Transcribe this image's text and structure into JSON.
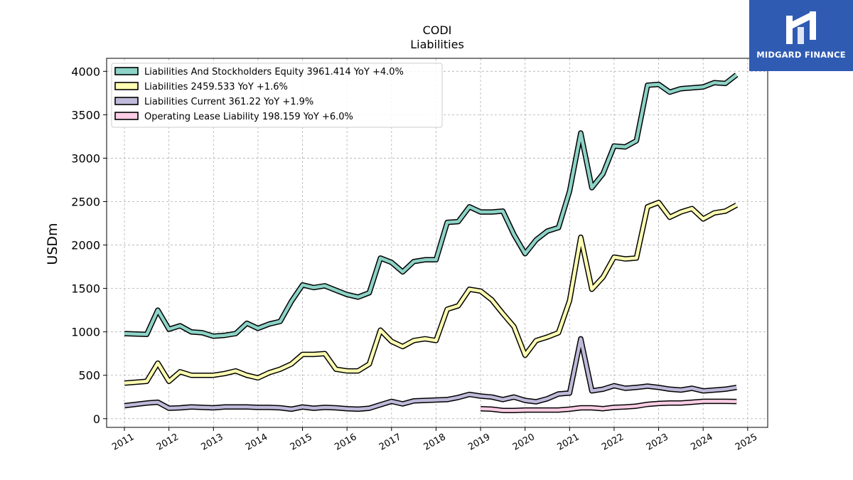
{
  "brand": {
    "name": "MIDGARD FINANCE",
    "bg_color": "#2f5bb3"
  },
  "chart_data": {
    "type": "line",
    "title": "CODI",
    "subtitle": "Liabilities",
    "xlabel": "",
    "ylabel": "USDm",
    "xlim": [
      2010.6,
      2025.45
    ],
    "ylim": [
      -100,
      4150
    ],
    "x_ticks": [
      "2011",
      "2012",
      "2013",
      "2014",
      "2015",
      "2016",
      "2017",
      "2018",
      "2019",
      "2020",
      "2021",
      "2022",
      "2023",
      "2024",
      "2025"
    ],
    "y_ticks": [
      0,
      500,
      1000,
      1500,
      2000,
      2500,
      3000,
      3500,
      4000
    ],
    "grid": true,
    "legend_position": "top-left",
    "series": [
      {
        "name": "Liabilities And Stockholders Equity",
        "legend": "Liabilities And Stockholders Equity  3961.414 YoY +4.0%",
        "color": "#8dd3c7",
        "x": [
          2011.0,
          2011.5,
          2011.75,
          2012.0,
          2012.25,
          2012.5,
          2012.75,
          2013.0,
          2013.25,
          2013.5,
          2013.75,
          2014.0,
          2014.25,
          2014.5,
          2014.75,
          2015.0,
          2015.25,
          2015.5,
          2015.75,
          2016.0,
          2016.25,
          2016.5,
          2016.75,
          2017.0,
          2017.25,
          2017.5,
          2017.75,
          2018.0,
          2018.25,
          2018.5,
          2018.75,
          2019.0,
          2019.25,
          2019.5,
          2019.75,
          2020.0,
          2020.25,
          2020.5,
          2020.75,
          2021.0,
          2021.25,
          2021.5,
          2021.75,
          2022.0,
          2022.25,
          2022.5,
          2022.75,
          2023.0,
          2023.25,
          2023.5,
          2023.75,
          2024.0,
          2024.25,
          2024.5,
          2024.75
        ],
        "y": [
          980,
          970,
          1250,
          1030,
          1070,
          1000,
          990,
          950,
          960,
          980,
          1100,
          1040,
          1090,
          1120,
          1350,
          1540,
          1510,
          1530,
          1480,
          1430,
          1400,
          1450,
          1850,
          1800,
          1690,
          1810,
          1830,
          1830,
          2260,
          2270,
          2440,
          2380,
          2380,
          2390,
          2120,
          1900,
          2060,
          2160,
          2200,
          2620,
          3290,
          2660,
          2820,
          3140,
          3130,
          3200,
          3840,
          3850,
          3760,
          3800,
          3810,
          3820,
          3870,
          3860,
          3960
        ]
      },
      {
        "name": "Liabilities",
        "legend": "Liabilities  2459.533 YoY +1.6%",
        "color": "#ffffb3",
        "x": [
          2011.0,
          2011.5,
          2011.75,
          2012.0,
          2012.25,
          2012.5,
          2012.75,
          2013.0,
          2013.25,
          2013.5,
          2013.75,
          2014.0,
          2014.25,
          2014.5,
          2014.75,
          2015.0,
          2015.25,
          2015.5,
          2015.75,
          2016.0,
          2016.25,
          2016.5,
          2016.75,
          2017.0,
          2017.25,
          2017.5,
          2017.75,
          2018.0,
          2018.25,
          2018.5,
          2018.75,
          2019.0,
          2019.25,
          2019.5,
          2019.75,
          2020.0,
          2020.25,
          2020.5,
          2020.75,
          2021.0,
          2021.25,
          2021.5,
          2021.75,
          2022.0,
          2022.25,
          2022.5,
          2022.75,
          2023.0,
          2023.25,
          2023.5,
          2023.75,
          2024.0,
          2024.25,
          2024.5,
          2024.75
        ],
        "y": [
          410,
          430,
          640,
          430,
          540,
          500,
          500,
          500,
          520,
          550,
          500,
          470,
          530,
          570,
          630,
          740,
          740,
          750,
          570,
          550,
          550,
          630,
          1020,
          890,
          830,
          900,
          920,
          900,
          1260,
          1300,
          1490,
          1470,
          1370,
          1210,
          1060,
          730,
          900,
          940,
          990,
          1360,
          2090,
          1490,
          1630,
          1860,
          1840,
          1850,
          2440,
          2490,
          2320,
          2380,
          2420,
          2300,
          2370,
          2390,
          2460
        ]
      },
      {
        "name": "Liabilities Current",
        "legend": "Liabilities Current  361.22 YoY +1.9%",
        "color": "#bebada",
        "x": [
          2011.0,
          2011.5,
          2011.75,
          2012.0,
          2012.25,
          2012.5,
          2012.75,
          2013.0,
          2013.25,
          2013.5,
          2013.75,
          2014.0,
          2014.25,
          2014.5,
          2014.75,
          2015.0,
          2015.25,
          2015.5,
          2015.75,
          2016.0,
          2016.25,
          2016.5,
          2016.75,
          2017.0,
          2017.25,
          2017.5,
          2017.75,
          2018.0,
          2018.25,
          2018.5,
          2018.75,
          2019.0,
          2019.25,
          2019.5,
          2019.75,
          2020.0,
          2020.25,
          2020.5,
          2020.75,
          2021.0,
          2021.25,
          2021.5,
          2021.75,
          2022.0,
          2022.25,
          2022.5,
          2022.75,
          2023.0,
          2023.25,
          2023.5,
          2023.75,
          2024.0,
          2024.25,
          2024.5,
          2024.75
        ],
        "y": [
          150,
          180,
          190,
          120,
          125,
          135,
          130,
          125,
          135,
          135,
          135,
          130,
          130,
          125,
          110,
          135,
          120,
          130,
          125,
          115,
          110,
          120,
          160,
          200,
          170,
          205,
          210,
          215,
          220,
          245,
          280,
          260,
          250,
          220,
          250,
          210,
          195,
          230,
          285,
          295,
          920,
          320,
          340,
          380,
          350,
          360,
          375,
          360,
          340,
          330,
          350,
          320,
          330,
          340,
          360
        ]
      },
      {
        "name": "Operating Lease Liability",
        "legend": "Operating Lease Liability  198.159 YoY +6.0%",
        "color": "#fccde5",
        "x": [
          2019.0,
          2019.25,
          2019.5,
          2019.75,
          2020.0,
          2020.25,
          2020.5,
          2020.75,
          2021.0,
          2021.25,
          2021.5,
          2021.75,
          2022.0,
          2022.25,
          2022.5,
          2022.75,
          2023.0,
          2023.25,
          2023.5,
          2023.75,
          2024.0,
          2024.25,
          2024.5,
          2024.75
        ],
        "y": [
          115,
          110,
          95,
          95,
          100,
          100,
          100,
          100,
          110,
          125,
          125,
          115,
          130,
          135,
          145,
          165,
          175,
          180,
          180,
          190,
          200,
          200,
          200,
          198
        ]
      }
    ]
  }
}
